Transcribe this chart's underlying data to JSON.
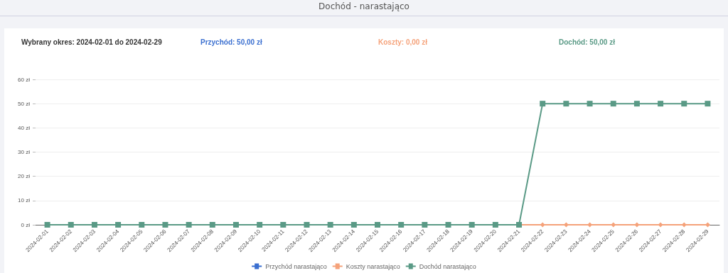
{
  "chart_data": {
    "type": "line",
    "title": "Dochód - narastająco",
    "annotations": [
      "Wybrany okres: 2024-02-01 do 2024-02-29",
      "Przychód: 50,00 zł",
      "Koszty: 0,00 zł",
      "Dochód: 50,00 zł"
    ],
    "categories": [
      "2024-02-01",
      "2024-02-02",
      "2024-02-03",
      "2024-02-04",
      "2024-02-05",
      "2024-02-06",
      "2024-02-07",
      "2024-02-08",
      "2024-02-09",
      "2024-02-10",
      "2024-02-11",
      "2024-02-12",
      "2024-02-13",
      "2024-02-14",
      "2024-02-15",
      "2024-02-16",
      "2024-02-17",
      "2024-02-18",
      "2024-02-19",
      "2024-02-20",
      "2024-02-21",
      "2024-02-22",
      "2024-02-23",
      "2024-02-24",
      "2024-02-25",
      "2024-02-26",
      "2024-02-27",
      "2024-02-28",
      "2024-02-29"
    ],
    "series": [
      {
        "name": "Przychód narastająco",
        "color": "#3a6fd0",
        "marker": "circle",
        "values": [
          null,
          null,
          null,
          null,
          null,
          null,
          null,
          null,
          null,
          null,
          null,
          null,
          null,
          null,
          null,
          null,
          null,
          null,
          null,
          null,
          null,
          null,
          null,
          null,
          null,
          null,
          null,
          null,
          null
        ]
      },
      {
        "name": "Koszty narastająco",
        "color": "#f5a27a",
        "marker": "diamond",
        "values": [
          null,
          null,
          null,
          null,
          null,
          null,
          null,
          null,
          null,
          null,
          null,
          null,
          null,
          null,
          null,
          null,
          null,
          null,
          null,
          null,
          0,
          0,
          0,
          0,
          0,
          0,
          0,
          0,
          0
        ]
      },
      {
        "name": "Dochód narastająco",
        "color": "#5a9a86",
        "marker": "square",
        "values": [
          0,
          0,
          0,
          0,
          0,
          0,
          0,
          0,
          0,
          0,
          0,
          0,
          0,
          0,
          0,
          0,
          0,
          0,
          0,
          0,
          0,
          50,
          50,
          50,
          50,
          50,
          50,
          50,
          50
        ]
      }
    ],
    "ylim": [
      0,
      60
    ],
    "yticks": [
      {
        "value": 0,
        "label": "0 zł"
      },
      {
        "value": 10,
        "label": "10 zł"
      },
      {
        "value": 20,
        "label": "20 zł"
      },
      {
        "value": 30,
        "label": "30 zł"
      },
      {
        "value": 40,
        "label": "40 zł"
      },
      {
        "value": 50,
        "label": "50 zł"
      },
      {
        "value": 60,
        "label": "60 zł"
      }
    ],
    "grid": "y",
    "legend": "bottom"
  }
}
